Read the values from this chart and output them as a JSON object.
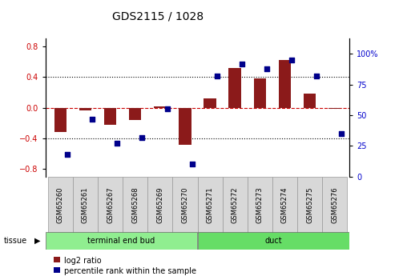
{
  "title": "GDS2115 / 1028",
  "samples": [
    "GSM65260",
    "GSM65261",
    "GSM65267",
    "GSM65268",
    "GSM65269",
    "GSM65270",
    "GSM65271",
    "GSM65272",
    "GSM65273",
    "GSM65274",
    "GSM65275",
    "GSM65276"
  ],
  "log2_ratio": [
    -0.32,
    -0.04,
    -0.22,
    -0.16,
    0.02,
    -0.48,
    0.12,
    0.52,
    0.38,
    0.62,
    0.18,
    -0.02
  ],
  "percentile": [
    18,
    47,
    27,
    32,
    55,
    10,
    82,
    92,
    88,
    95,
    82,
    35
  ],
  "bar_color": "#8B1A1A",
  "dot_color": "#00008B",
  "dashed_line_color": "#CC0000",
  "grid_color": "black",
  "ylim_left": [
    -0.9,
    0.9
  ],
  "ylim_right": [
    0,
    112.5
  ],
  "yticks_left": [
    -0.8,
    -0.4,
    0.0,
    0.4,
    0.8
  ],
  "yticks_right": [
    0,
    25,
    50,
    75,
    100
  ],
  "group1_label": "terminal end bud",
  "group1_n": 6,
  "group1_color": "#90EE90",
  "group2_label": "duct",
  "group2_n": 6,
  "group2_color": "#66DD66",
  "tissue_label": "tissue",
  "legend_bar_label": "log2 ratio",
  "legend_dot_label": "percentile rank within the sample",
  "tick_label_color_left": "#CC0000",
  "tick_label_color_right": "#0000CC",
  "title_fontsize": 10,
  "axis_fontsize": 7,
  "label_fontsize": 6,
  "legend_fontsize": 7
}
